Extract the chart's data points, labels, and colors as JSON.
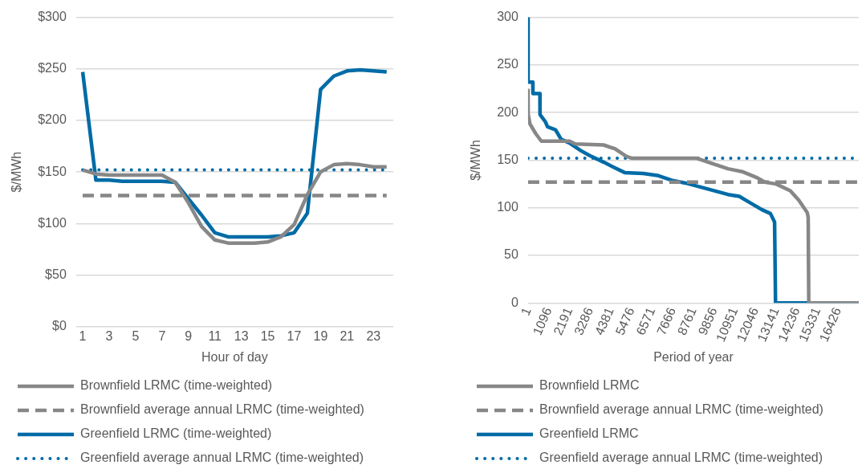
{
  "chart_data": [
    {
      "type": "line",
      "xlabel": "Hour of day",
      "ylabel": "$/MWh",
      "x": [
        1,
        2,
        3,
        4,
        5,
        6,
        7,
        8,
        9,
        10,
        11,
        12,
        13,
        14,
        15,
        16,
        17,
        18,
        19,
        20,
        21,
        22,
        23,
        24
      ],
      "xlim": [
        0.5,
        24.5
      ],
      "xticks": [
        1,
        3,
        5,
        7,
        9,
        11,
        13,
        15,
        17,
        19,
        21,
        23
      ],
      "ylim": [
        0,
        300
      ],
      "yticks": [
        {
          "value": 0,
          "label": "$0"
        },
        {
          "value": 50,
          "label": "$50"
        },
        {
          "value": 100,
          "label": "$100"
        },
        {
          "value": 150,
          "label": "$150"
        },
        {
          "value": 200,
          "label": "$200"
        },
        {
          "value": 250,
          "label": "$250"
        },
        {
          "value": 300,
          "label": "$300"
        }
      ],
      "grid": "y",
      "legend": "bottom",
      "series": [
        {
          "name": "Brownfield LRMC (time-weighted)",
          "color": "#878787",
          "line_style": "solid",
          "values": [
            152,
            148,
            147,
            147,
            147,
            147,
            147,
            140,
            120,
            97,
            84,
            81,
            81,
            81,
            82,
            87,
            99,
            128,
            150,
            157,
            158,
            157,
            155,
            155
          ]
        },
        {
          "name": "Brownfield average annual LRMC (time-weighted)",
          "color": "#878787",
          "line_style": "dashed",
          "values": [
            127,
            127,
            127,
            127,
            127,
            127,
            127,
            127,
            127,
            127,
            127,
            127,
            127,
            127,
            127,
            127,
            127,
            127,
            127,
            127,
            127,
            127,
            127,
            127
          ]
        },
        {
          "name": "Greenfield LRMC (time-weighted)",
          "color": "#006ba6",
          "line_style": "solid",
          "values": [
            247,
            142,
            142,
            141,
            141,
            141,
            141,
            140,
            124,
            108,
            91,
            87,
            87,
            87,
            87,
            88,
            91,
            110,
            230,
            243,
            248,
            249,
            248,
            247
          ]
        },
        {
          "name": "Greenfield average annual LRMC (time-weighted)",
          "color": "#006ba6",
          "line_style": "dotted",
          "values": [
            152,
            152,
            152,
            152,
            152,
            152,
            152,
            152,
            152,
            152,
            152,
            152,
            152,
            152,
            152,
            152,
            152,
            152,
            152,
            152,
            152,
            152,
            152,
            152
          ]
        }
      ]
    },
    {
      "type": "line",
      "xlabel": "Period of year",
      "ylabel": "$/MWh",
      "xlim": [
        1,
        17520
      ],
      "xticks": [
        1,
        1096,
        2191,
        3286,
        4381,
        5476,
        6571,
        7666,
        8761,
        9856,
        10951,
        12046,
        13141,
        14236,
        15331,
        16426
      ],
      "ylim": [
        0,
        300
      ],
      "yticks": [
        0,
        50,
        100,
        150,
        200,
        250,
        300
      ],
      "grid": "y",
      "legend": "bottom",
      "series": [
        {
          "name": "Brownfield LRMC",
          "color": "#878787",
          "line_style": "solid",
          "x": [
            1,
            10,
            105,
            405,
            704,
            2202,
            2500,
            4000,
            4600,
            5200,
            5500,
            8940,
            9690,
            10590,
            11340,
            12090,
            12540,
            13140,
            13890,
            14340,
            14790,
            14840,
            14870,
            17520
          ],
          "values": [
            225,
            198,
            188,
            178,
            170,
            170,
            167,
            166,
            162,
            154,
            152,
            152,
            147,
            141,
            138,
            132,
            127,
            125,
            118,
            108,
            95,
            90,
            0,
            0
          ]
        },
        {
          "name": "Brownfield average annual LRMC (time-weighted)",
          "color": "#878787",
          "line_style": "dashed",
          "x": [
            1,
            17520
          ],
          "values": [
            127,
            127
          ]
        },
        {
          "name": "Greenfield LRMC",
          "color": "#006ba6",
          "line_style": "solid",
          "x": [
            1,
            5,
            255,
            260,
            629,
            635,
            929,
            1034,
            1453,
            1753,
            2202,
            2800,
            3250,
            4000,
            4600,
            5120,
            6100,
            6850,
            7600,
            8340,
            9090,
            9840,
            10590,
            11190,
            11790,
            12390,
            12840,
            13060,
            13110,
            17520
          ],
          "values": [
            300,
            232,
            232,
            220,
            220,
            198,
            190,
            185,
            182,
            172,
            168,
            160,
            155,
            148,
            142,
            137,
            136,
            134,
            129,
            126,
            122,
            118,
            114,
            112,
            105,
            98,
            94,
            85,
            0,
            0
          ]
        },
        {
          "name": "Greenfield average annual LRMC (time-weighted)",
          "color": "#006ba6",
          "line_style": "dotted",
          "x": [
            1,
            17520
          ],
          "values": [
            152,
            152
          ]
        }
      ]
    }
  ]
}
